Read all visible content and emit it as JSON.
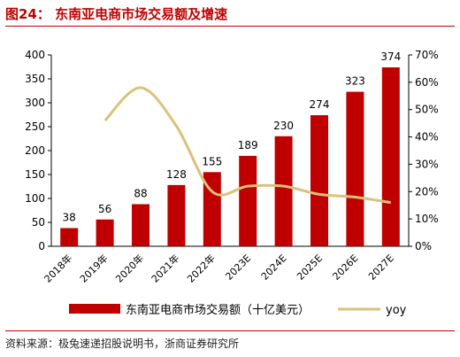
{
  "header": {
    "title": "图24：  东南亚电商市场交易额及增速"
  },
  "footer": {
    "source": "资料来源：极兔速递招股说明书，浙商证券研究所"
  },
  "colors": {
    "bar": "#c00000",
    "line": "#d9c27a",
    "title": "#c00000"
  },
  "chart_data": {
    "type": "bar",
    "title": "东南亚电商市场交易额及增速",
    "categories": [
      "2018年",
      "2019年",
      "2020年",
      "2021年",
      "2022年",
      "2023E",
      "2024E",
      "2025E",
      "2026E",
      "2027E"
    ],
    "series": [
      {
        "name": "东南亚电商市场交易额（十亿美元）",
        "type": "bar",
        "axis": "left",
        "values": [
          38,
          56,
          88,
          128,
          155,
          189,
          230,
          274,
          323,
          374
        ]
      },
      {
        "name": "yoy",
        "type": "line",
        "axis": "right",
        "values": [
          null,
          0.46,
          0.58,
          0.44,
          0.2,
          0.22,
          0.22,
          0.19,
          0.18,
          0.16
        ]
      }
    ],
    "ylim_left": [
      0,
      400
    ],
    "ylim_right": [
      0,
      0.7
    ],
    "yticks_left": [
      "0",
      "50",
      "100",
      "150",
      "200",
      "250",
      "300",
      "350",
      "400"
    ],
    "yticks_right": [
      "0%",
      "10%",
      "20%",
      "30%",
      "40%",
      "50%",
      "60%",
      "70%"
    ],
    "legend_position": "bottom",
    "grid": false
  }
}
